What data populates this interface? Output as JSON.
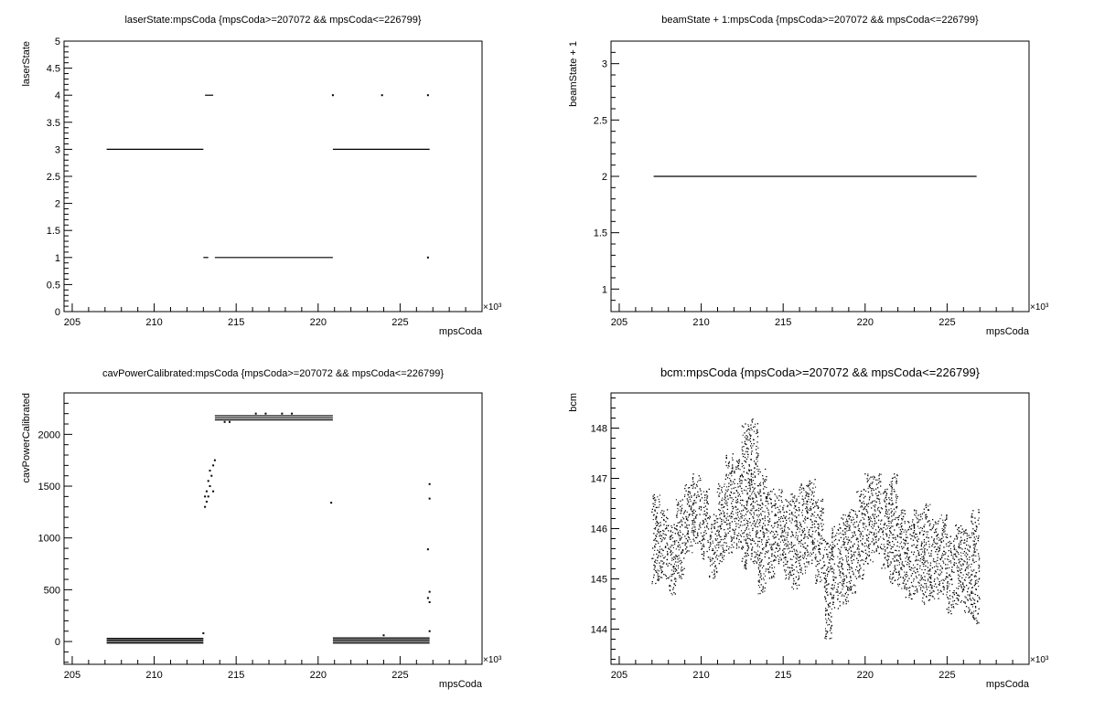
{
  "chart_data": [
    {
      "type": "scatter",
      "title": "laserState:mpsCoda {mpsCoda>=207072 && mpsCoda<=226799}",
      "xlabel": "mpsCoda",
      "ylabel": "laserState",
      "x_exponent": "×10³",
      "xlim": [
        204.5,
        230
      ],
      "ylim": [
        0,
        5
      ],
      "xticks": [
        205,
        210,
        215,
        220,
        225
      ],
      "yticks": [
        0,
        0.5,
        1,
        1.5,
        2,
        2.5,
        3,
        3.5,
        4,
        4.5,
        5
      ],
      "grid": false,
      "segments": [
        {
          "x0": 207.1,
          "x1": 213.0,
          "y": 3
        },
        {
          "x0": 213.1,
          "x1": 213.6,
          "y": 4
        },
        {
          "x0": 213.0,
          "x1": 213.3,
          "y": 1
        },
        {
          "x0": 213.7,
          "x1": 220.9,
          "y": 1
        },
        {
          "x0": 220.9,
          "x1": 226.8,
          "y": 3
        }
      ],
      "points": [
        {
          "x": 220.9,
          "y": 4
        },
        {
          "x": 223.9,
          "y": 4
        },
        {
          "x": 226.7,
          "y": 4
        },
        {
          "x": 226.7,
          "y": 1
        }
      ]
    },
    {
      "type": "scatter",
      "title": "beamState + 1:mpsCoda {mpsCoda>=207072 && mpsCoda<=226799}",
      "xlabel": "mpsCoda",
      "ylabel": "beamState + 1",
      "x_exponent": "×10³",
      "xlim": [
        204.5,
        230
      ],
      "ylim": [
        0.8,
        3.2
      ],
      "xticks": [
        205,
        210,
        215,
        220,
        225
      ],
      "yticks": [
        1,
        1.5,
        2,
        2.5,
        3
      ],
      "grid": false,
      "segments": [
        {
          "x0": 207.1,
          "x1": 226.8,
          "y": 2
        }
      ],
      "points": []
    },
    {
      "type": "scatter",
      "title": "cavPowerCalibrated:mpsCoda {mpsCoda>=207072 && mpsCoda<=226799}",
      "xlabel": "mpsCoda",
      "ylabel": "cavPowerCalibrated",
      "x_exponent": "×10³",
      "xlim": [
        204.5,
        230
      ],
      "ylim": [
        -220,
        2400
      ],
      "xticks": [
        205,
        210,
        215,
        220,
        225
      ],
      "yticks": [
        0,
        500,
        1000,
        1500,
        2000
      ],
      "grid": false,
      "segments": [
        {
          "x0": 207.1,
          "x1": 213.0,
          "y": 30
        },
        {
          "x0": 207.1,
          "x1": 213.0,
          "y": 15
        },
        {
          "x0": 207.1,
          "x1": 213.0,
          "y": 0
        },
        {
          "x0": 207.1,
          "x1": 213.0,
          "y": -15
        },
        {
          "x0": 213.7,
          "x1": 220.9,
          "y": 2180
        },
        {
          "x0": 213.7,
          "x1": 220.9,
          "y": 2160
        },
        {
          "x0": 213.7,
          "x1": 220.9,
          "y": 2140
        },
        {
          "x0": 220.9,
          "x1": 226.8,
          "y": 35
        },
        {
          "x0": 220.9,
          "x1": 226.8,
          "y": 18
        },
        {
          "x0": 220.9,
          "x1": 226.8,
          "y": 2
        },
        {
          "x0": 220.9,
          "x1": 226.8,
          "y": -15
        }
      ],
      "points": [
        {
          "x": 213.1,
          "y": 1300
        },
        {
          "x": 213.2,
          "y": 1350
        },
        {
          "x": 213.3,
          "y": 1400
        },
        {
          "x": 213.2,
          "y": 1450
        },
        {
          "x": 213.4,
          "y": 1500
        },
        {
          "x": 213.3,
          "y": 1550
        },
        {
          "x": 213.5,
          "y": 1600
        },
        {
          "x": 213.4,
          "y": 1650
        },
        {
          "x": 213.6,
          "y": 1450
        },
        {
          "x": 213.6,
          "y": 1700
        },
        {
          "x": 213.7,
          "y": 1750
        },
        {
          "x": 213.1,
          "y": 1400
        },
        {
          "x": 213.0,
          "y": 80
        },
        {
          "x": 220.8,
          "y": 1340
        },
        {
          "x": 216.2,
          "y": 2200
        },
        {
          "x": 216.8,
          "y": 2200
        },
        {
          "x": 217.8,
          "y": 2200
        },
        {
          "x": 218.4,
          "y": 2200
        },
        {
          "x": 214.3,
          "y": 2120
        },
        {
          "x": 214.6,
          "y": 2120
        },
        {
          "x": 226.8,
          "y": 1520
        },
        {
          "x": 226.8,
          "y": 1380
        },
        {
          "x": 226.7,
          "y": 890
        },
        {
          "x": 226.8,
          "y": 480
        },
        {
          "x": 226.7,
          "y": 420
        },
        {
          "x": 226.8,
          "y": 380
        },
        {
          "x": 226.8,
          "y": 100
        },
        {
          "x": 224.0,
          "y": 60
        }
      ]
    },
    {
      "type": "scatter",
      "title": "bcm:mpsCoda {mpsCoda>=207072 && mpsCoda<=226799}",
      "xlabel": "mpsCoda",
      "ylabel": "bcm",
      "x_exponent": "×10³",
      "xlim": [
        204.5,
        230
      ],
      "ylim": [
        143.3,
        148.7
      ],
      "xticks": [
        205,
        210,
        215,
        220,
        225
      ],
      "yticks": [
        144,
        145,
        146,
        147,
        148
      ],
      "grid": false,
      "bands": [
        {
          "x": 207.2,
          "lo": 144.9,
          "hi": 146.7
        },
        {
          "x": 207.7,
          "lo": 145.0,
          "hi": 146.4
        },
        {
          "x": 208.2,
          "lo": 144.7,
          "hi": 146.1
        },
        {
          "x": 208.7,
          "lo": 145.0,
          "hi": 146.6
        },
        {
          "x": 209.2,
          "lo": 145.5,
          "hi": 146.9
        },
        {
          "x": 209.7,
          "lo": 145.7,
          "hi": 147.1
        },
        {
          "x": 210.2,
          "lo": 145.4,
          "hi": 146.8
        },
        {
          "x": 210.7,
          "lo": 145.0,
          "hi": 146.3
        },
        {
          "x": 211.2,
          "lo": 145.3,
          "hi": 146.9
        },
        {
          "x": 211.7,
          "lo": 145.5,
          "hi": 147.5
        },
        {
          "x": 212.2,
          "lo": 145.6,
          "hi": 147.4
        },
        {
          "x": 212.7,
          "lo": 145.2,
          "hi": 148.1
        },
        {
          "x": 213.2,
          "lo": 145.3,
          "hi": 148.2
        },
        {
          "x": 213.7,
          "lo": 144.7,
          "hi": 147.2
        },
        {
          "x": 214.2,
          "lo": 145.0,
          "hi": 146.8
        },
        {
          "x": 214.7,
          "lo": 145.3,
          "hi": 146.8
        },
        {
          "x": 215.2,
          "lo": 145.0,
          "hi": 146.6
        },
        {
          "x": 215.7,
          "lo": 144.8,
          "hi": 146.7
        },
        {
          "x": 216.2,
          "lo": 145.1,
          "hi": 146.9
        },
        {
          "x": 216.7,
          "lo": 145.3,
          "hi": 147.0
        },
        {
          "x": 217.2,
          "lo": 144.9,
          "hi": 146.6
        },
        {
          "x": 217.7,
          "lo": 143.8,
          "hi": 145.8
        },
        {
          "x": 218.2,
          "lo": 144.4,
          "hi": 146.1
        },
        {
          "x": 218.7,
          "lo": 144.5,
          "hi": 146.3
        },
        {
          "x": 219.2,
          "lo": 144.7,
          "hi": 146.4
        },
        {
          "x": 219.7,
          "lo": 145.0,
          "hi": 146.8
        },
        {
          "x": 220.2,
          "lo": 145.3,
          "hi": 147.1
        },
        {
          "x": 220.7,
          "lo": 145.5,
          "hi": 147.1
        },
        {
          "x": 221.2,
          "lo": 145.2,
          "hi": 146.8
        },
        {
          "x": 221.7,
          "lo": 144.9,
          "hi": 147.1
        },
        {
          "x": 222.2,
          "lo": 144.8,
          "hi": 146.4
        },
        {
          "x": 222.7,
          "lo": 144.6,
          "hi": 146.2
        },
        {
          "x": 223.2,
          "lo": 144.7,
          "hi": 146.4
        },
        {
          "x": 223.7,
          "lo": 144.5,
          "hi": 146.5
        },
        {
          "x": 224.2,
          "lo": 144.6,
          "hi": 146.2
        },
        {
          "x": 224.7,
          "lo": 144.7,
          "hi": 146.3
        },
        {
          "x": 225.2,
          "lo": 144.3,
          "hi": 145.9
        },
        {
          "x": 225.7,
          "lo": 144.5,
          "hi": 146.1
        },
        {
          "x": 226.2,
          "lo": 144.3,
          "hi": 146.0
        },
        {
          "x": 226.7,
          "lo": 144.1,
          "hi": 146.4
        }
      ]
    }
  ]
}
